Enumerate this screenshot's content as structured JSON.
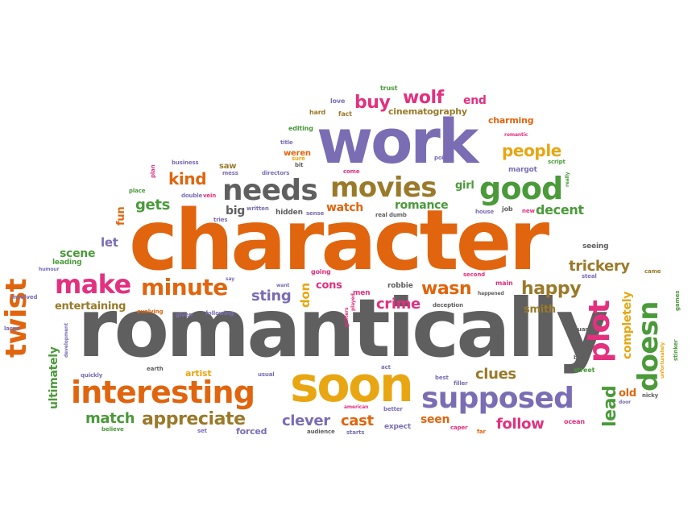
{
  "palette": {
    "orange": "#e0650e",
    "gray": "#5f5f5f",
    "purple": "#7b6db4",
    "green": "#4a9a3a",
    "pink": "#e3307f",
    "gold": "#e8a612",
    "brown": "#9a7a2a"
  },
  "words": [
    {
      "text": "character",
      "color": "orange"
    },
    {
      "text": "romantically",
      "color": "gray"
    },
    {
      "text": "work",
      "color": "purple"
    },
    {
      "text": "soon",
      "color": "gold"
    },
    {
      "text": "interesting",
      "color": "orange"
    },
    {
      "text": "supposed",
      "color": "purple"
    },
    {
      "text": "needs",
      "color": "gray"
    },
    {
      "text": "movies",
      "color": "brown"
    },
    {
      "text": "good",
      "color": "green"
    },
    {
      "text": "make",
      "color": "pink"
    },
    {
      "text": "minute",
      "color": "orange"
    },
    {
      "text": "twist",
      "color": "orange"
    },
    {
      "text": "plot",
      "color": "pink"
    },
    {
      "text": "doesn",
      "color": "green"
    },
    {
      "text": "wolf",
      "color": "pink"
    },
    {
      "text": "buy",
      "color": "pink"
    },
    {
      "text": "people",
      "color": "gold"
    },
    {
      "text": "happy",
      "color": "brown"
    },
    {
      "text": "appreciate",
      "color": "brown"
    },
    {
      "text": "match",
      "color": "green"
    },
    {
      "text": "clever",
      "color": "purple"
    },
    {
      "text": "cast",
      "color": "orange"
    },
    {
      "text": "follow",
      "color": "pink"
    },
    {
      "text": "clues",
      "color": "brown"
    },
    {
      "text": "lead",
      "color": "green"
    },
    {
      "text": "trickery",
      "color": "brown"
    },
    {
      "text": "wasn",
      "color": "orange"
    },
    {
      "text": "crime",
      "color": "pink"
    },
    {
      "text": "sting",
      "color": "purple"
    },
    {
      "text": "kind",
      "color": "orange"
    },
    {
      "text": "gets",
      "color": "green"
    },
    {
      "text": "romance",
      "color": "green"
    },
    {
      "text": "watch",
      "color": "orange"
    },
    {
      "text": "decent",
      "color": "green"
    },
    {
      "text": "big",
      "color": "gray"
    },
    {
      "text": "ultimately",
      "color": "green"
    },
    {
      "text": "completely",
      "color": "gold"
    },
    {
      "text": "end",
      "color": "pink"
    },
    {
      "text": "cinematography",
      "color": "brown"
    },
    {
      "text": "charming",
      "color": "orange"
    },
    {
      "text": "seen",
      "color": "orange"
    },
    {
      "text": "entertaining",
      "color": "brown"
    },
    {
      "text": "scene",
      "color": "green"
    },
    {
      "text": "let",
      "color": "purple"
    },
    {
      "text": "fun",
      "color": "orange"
    },
    {
      "text": "girl",
      "color": "green"
    },
    {
      "text": "cons",
      "color": "pink"
    },
    {
      "text": "don",
      "color": "gold"
    },
    {
      "text": "smith",
      "color": "brown"
    },
    {
      "text": "old",
      "color": "orange"
    },
    {
      "text": "artist",
      "color": "gold"
    },
    {
      "text": "trust",
      "color": "green"
    },
    {
      "text": "love",
      "color": "purple"
    },
    {
      "text": "hard",
      "color": "brown"
    },
    {
      "text": "fact",
      "color": "brown"
    },
    {
      "text": "editing",
      "color": "green"
    },
    {
      "text": "title",
      "color": "purple"
    },
    {
      "text": "sure",
      "color": "gold"
    },
    {
      "text": "weren",
      "color": "orange"
    },
    {
      "text": "bit",
      "color": "gray"
    },
    {
      "text": "saw",
      "color": "brown"
    },
    {
      "text": "mess",
      "color": "purple"
    },
    {
      "text": "business",
      "color": "purple"
    },
    {
      "text": "plan",
      "color": "pink"
    },
    {
      "text": "directors",
      "color": "purple"
    },
    {
      "text": "come",
      "color": "pink"
    },
    {
      "text": "points",
      "color": "purple"
    },
    {
      "text": "script",
      "color": "green"
    },
    {
      "text": "margot",
      "color": "purple"
    },
    {
      "text": "romantic",
      "color": "pink"
    },
    {
      "text": "really",
      "color": "green"
    },
    {
      "text": "place",
      "color": "green"
    },
    {
      "text": "double",
      "color": "purple"
    },
    {
      "text": "vein",
      "color": "pink"
    },
    {
      "text": "written",
      "color": "purple"
    },
    {
      "text": "hidden",
      "color": "gray"
    },
    {
      "text": "sense",
      "color": "purple"
    },
    {
      "text": "real",
      "color": "gray"
    },
    {
      "text": "dumb",
      "color": "gray"
    },
    {
      "text": "house",
      "color": "purple"
    },
    {
      "text": "job",
      "color": "gray"
    },
    {
      "text": "new",
      "color": "pink"
    },
    {
      "text": "tries",
      "color": "purple"
    },
    {
      "text": "seeing",
      "color": "gray"
    },
    {
      "text": "leading",
      "color": "green"
    },
    {
      "text": "humour",
      "color": "purple"
    },
    {
      "text": "say",
      "color": "purple"
    },
    {
      "text": "going",
      "color": "pink"
    },
    {
      "text": "second",
      "color": "pink"
    },
    {
      "text": "came",
      "color": "brown"
    },
    {
      "text": "steal",
      "color": "purple"
    },
    {
      "text": "want",
      "color": "purple"
    },
    {
      "text": "main",
      "color": "pink"
    },
    {
      "text": "men",
      "color": "pink"
    },
    {
      "text": "robbie",
      "color": "gray"
    },
    {
      "text": "happened",
      "color": "gray"
    },
    {
      "text": "games",
      "color": "green"
    },
    {
      "text": "involved",
      "color": "purple"
    },
    {
      "text": "evolving",
      "color": "orange"
    },
    {
      "text": "given",
      "color": "purple"
    },
    {
      "text": "following",
      "color": "purple"
    },
    {
      "text": "played",
      "color": "pink"
    },
    {
      "text": "grifters",
      "color": "pink"
    },
    {
      "text": "deception",
      "color": "gray"
    },
    {
      "text": "large",
      "color": "purple"
    },
    {
      "text": "development",
      "color": "purple"
    },
    {
      "text": "quickly",
      "color": "purple"
    },
    {
      "text": "earth",
      "color": "gray"
    },
    {
      "text": "usual",
      "color": "purple"
    },
    {
      "text": "act",
      "color": "purple"
    },
    {
      "text": "guard",
      "color": "gray"
    },
    {
      "text": "bad",
      "color": "gray"
    },
    {
      "text": "street",
      "color": "green"
    },
    {
      "text": "unfortunately",
      "color": "gold"
    },
    {
      "text": "stinker",
      "color": "green"
    },
    {
      "text": "best",
      "color": "purple"
    },
    {
      "text": "filler",
      "color": "purple"
    },
    {
      "text": "door",
      "color": "purple"
    },
    {
      "text": "nicky",
      "color": "gray"
    },
    {
      "text": "american",
      "color": "pink"
    },
    {
      "text": "better",
      "color": "purple"
    },
    {
      "text": "expect",
      "color": "purple"
    },
    {
      "text": "caper",
      "color": "pink"
    },
    {
      "text": "ocean",
      "color": "pink"
    },
    {
      "text": "far",
      "color": "orange"
    },
    {
      "text": "believe",
      "color": "green"
    },
    {
      "text": "set",
      "color": "purple"
    },
    {
      "text": "forced",
      "color": "purple"
    },
    {
      "text": "audience",
      "color": "gray"
    },
    {
      "text": "starts",
      "color": "purple"
    }
  ]
}
